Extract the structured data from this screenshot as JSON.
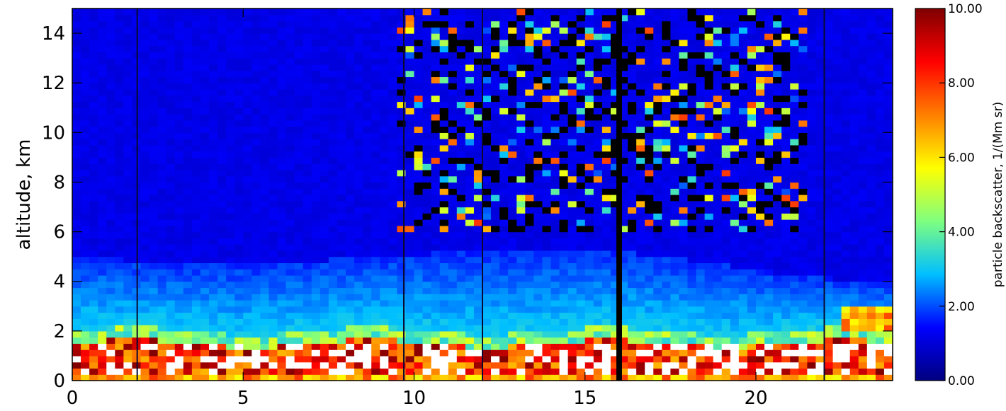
{
  "chart_data": {
    "type": "heatmap",
    "title": "",
    "xlabel": "",
    "ylabel": "altitude, km",
    "xlim": [
      0,
      24
    ],
    "ylim": [
      0,
      15
    ],
    "x_ticks": [
      "0",
      "5",
      "10",
      "15",
      "20"
    ],
    "y_ticks": [
      "0",
      "2",
      "4",
      "6",
      "8",
      "10",
      "12",
      "14"
    ],
    "x_tick_values": [
      0,
      5,
      10,
      15,
      20
    ],
    "y_tick_values": [
      0,
      2,
      4,
      6,
      8,
      10,
      12,
      14
    ],
    "colorbar": {
      "label": "particle backscatter, 1/(Mm sr)",
      "range": [
        0,
        10
      ],
      "tick_values": [
        0,
        2,
        4,
        6,
        8,
        10
      ],
      "tick_labels": [
        "0.00",
        "2.00",
        "4.00",
        "6.00",
        "8.00",
        "10.00"
      ],
      "colormap": "rainbow (dark blue → cyan → green → yellow → orange → dark red)",
      "colors": [
        "#00007f",
        "#0000ff",
        "#00bfff",
        "#7fff7f",
        "#ffff00",
        "#ff7f00",
        "#ff0000",
        "#7f0000"
      ]
    },
    "features": {
      "boundary_layer_top_km": 2.0,
      "aerosol_layer_top_km": 5.0,
      "saturated_region_color": "#ffffff",
      "no_data_color": "#000000",
      "vertical_gaps_x": [
        1.9,
        9.7,
        12.0,
        16.0,
        22.0
      ]
    }
  }
}
